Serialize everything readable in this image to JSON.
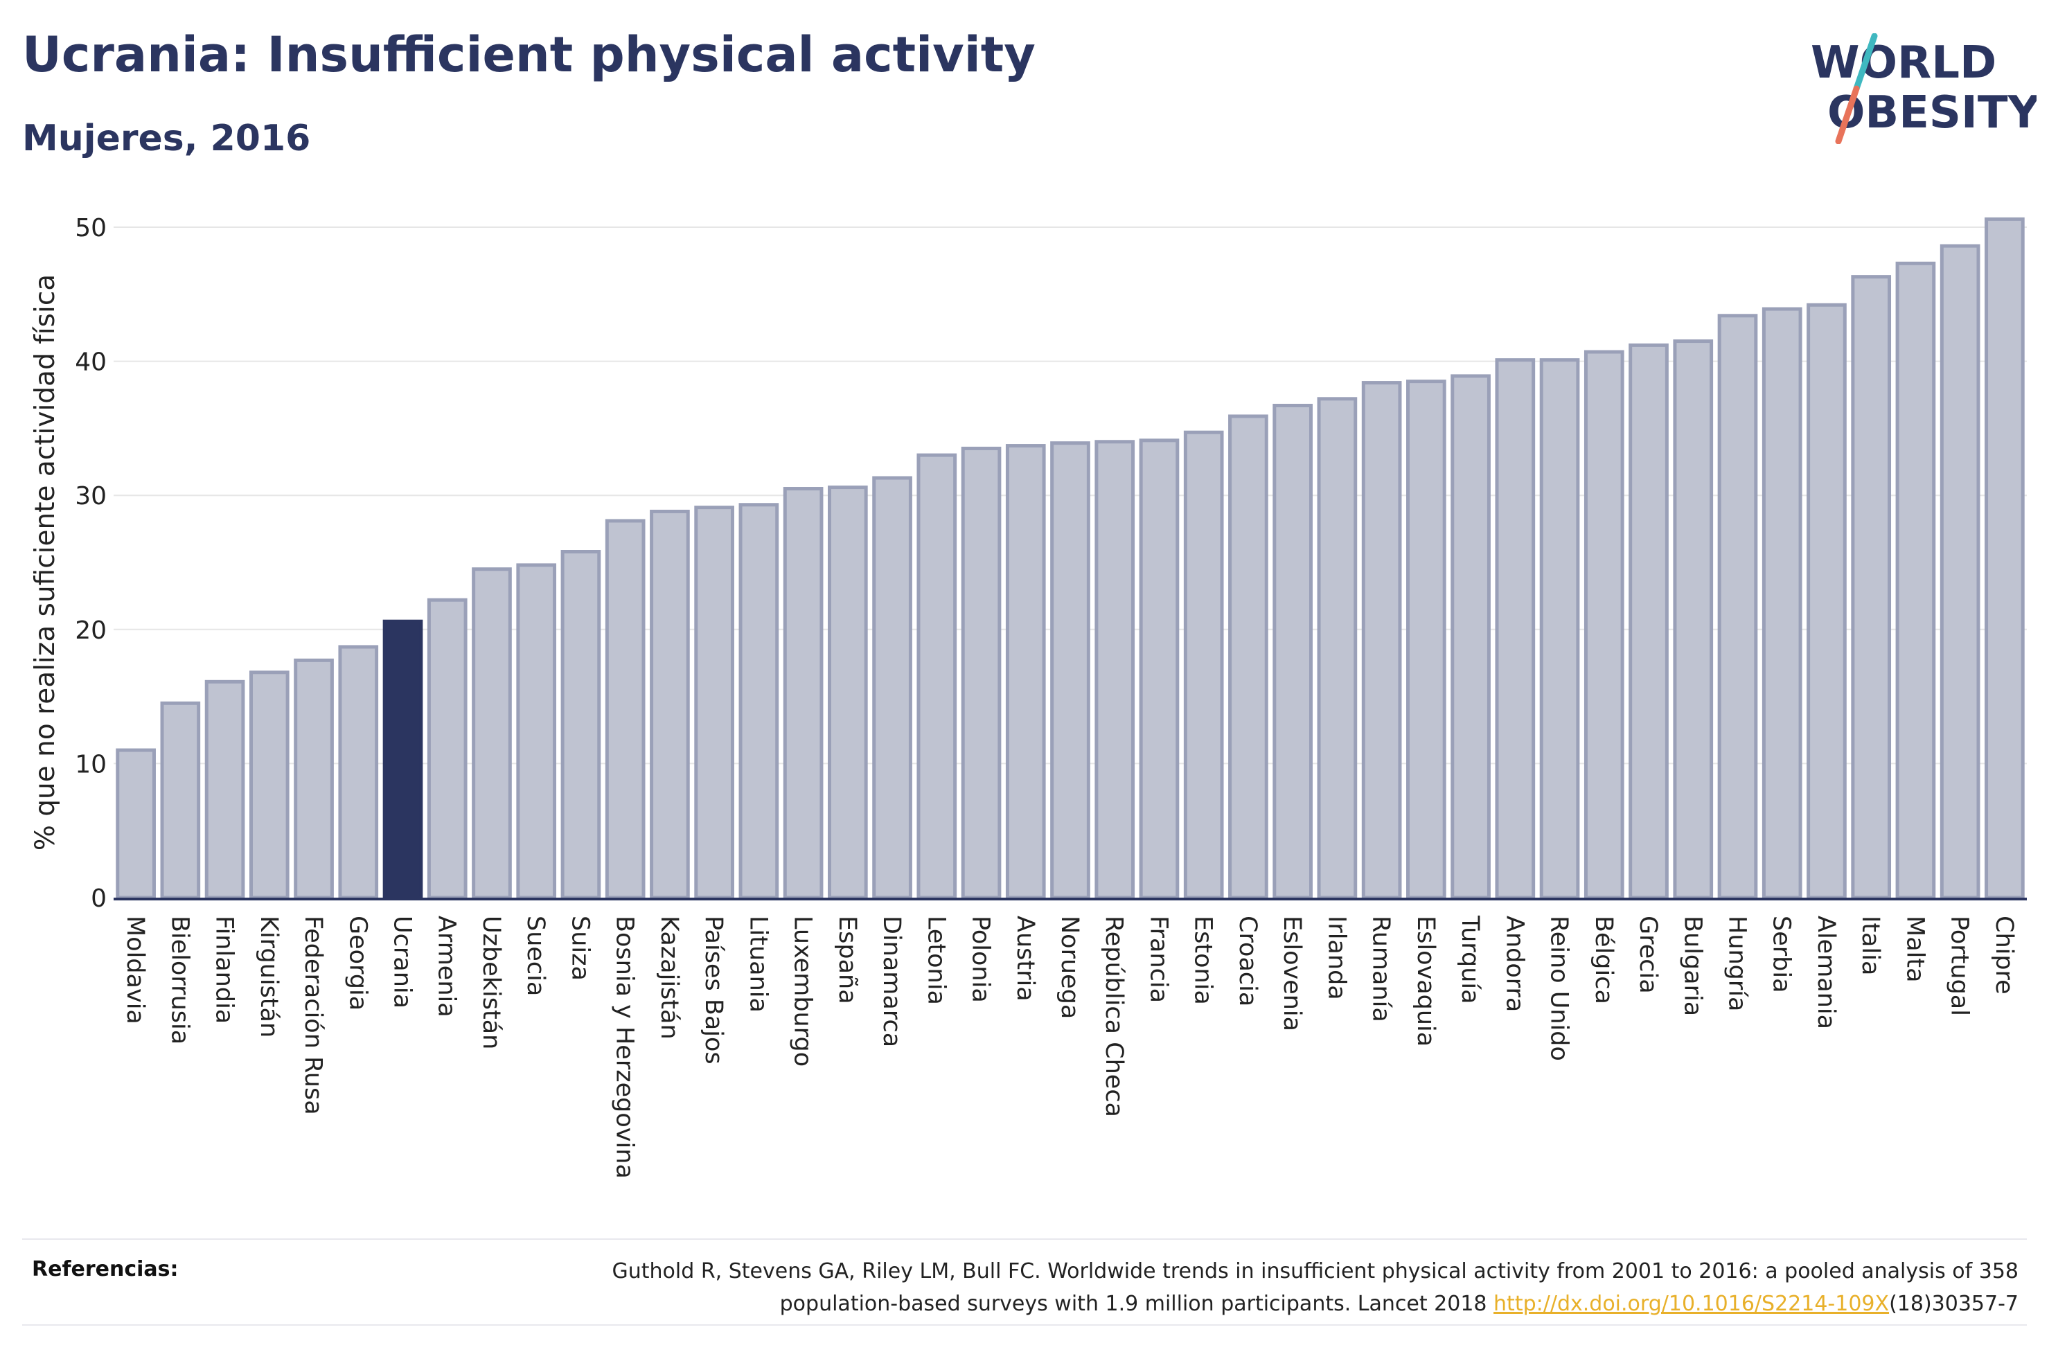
{
  "header": {
    "title": "Ucrania: Insufficient physical activity",
    "subtitle": "Mujeres, 2016"
  },
  "logo": {
    "line1": "WORLD",
    "line2": "OBESITY"
  },
  "colors": {
    "bar": "#bfc3d1",
    "bar_stroke": "#9aa0b8",
    "highlight": "#2b3560",
    "grid": "#e6e6e6",
    "axis": "#2b3560"
  },
  "chart_data": {
    "type": "bar",
    "title": "Ucrania: Insufficient physical activity",
    "subtitle": "Mujeres, 2016",
    "xlabel": "",
    "ylabel": "% que no realiza suficiente actividad física",
    "ylim": [
      0,
      52
    ],
    "yticks": [
      0,
      10,
      20,
      30,
      40,
      50
    ],
    "grid": true,
    "highlight": "Ucrania",
    "categories": [
      "Moldavia",
      "Bielorrusia",
      "Finlandia",
      "Kirguistán",
      "Federación Rusa",
      "Georgia",
      "Ucrania",
      "Armenia",
      "Uzbekistán",
      "Suecia",
      "Suiza",
      "Bosnia y Herzegovina",
      "Kazajistán",
      "Países Bajos",
      "Lituania",
      "Luxemburgo",
      "España",
      "Dinamarca",
      "Letonia",
      "Polonia",
      "Austria",
      "Noruega",
      "República Checa",
      "Francia",
      "Estonia",
      "Croacia",
      "Eslovenia",
      "Irlanda",
      "Rumanía",
      "Eslovaquia",
      "Turquía",
      "Andorra",
      "Reino Unido",
      "Bélgica",
      "Grecia",
      "Bulgaria",
      "Hungría",
      "Serbia",
      "Alemania",
      "Italia",
      "Malta",
      "Portugal",
      "Chipre"
    ],
    "values": [
      11.0,
      14.5,
      16.1,
      16.8,
      17.7,
      18.7,
      20.6,
      22.2,
      24.5,
      24.8,
      25.8,
      28.1,
      28.8,
      29.1,
      29.3,
      30.5,
      30.6,
      31.3,
      33.0,
      33.5,
      33.7,
      33.9,
      34.0,
      34.1,
      34.7,
      35.9,
      36.7,
      37.2,
      38.4,
      38.5,
      38.9,
      40.1,
      40.1,
      40.7,
      41.2,
      41.5,
      43.4,
      43.9,
      44.2,
      46.3,
      47.3,
      48.6,
      50.6
    ]
  },
  "references": {
    "label": "Referencias:",
    "line1": "Guthold R, Stevens GA, Riley LM, Bull FC. Worldwide trends in insufficient physical activity from 2001 to 2016: a pooled analysis of 358",
    "line2_prefix": "population-based surveys with 1.9 million participants. Lancet 2018 ",
    "link": "http://dx.doi.org/10.1016/S2214-109X",
    "line2_suffix": "(18)30357-7"
  }
}
